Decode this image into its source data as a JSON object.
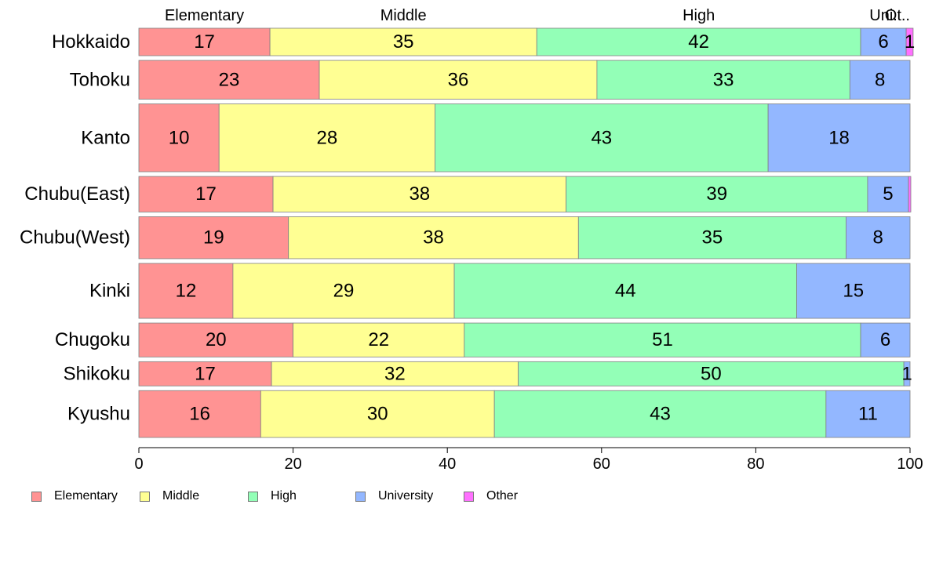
{
  "chart_data": {
    "type": "bar",
    "orientation": "horizontal",
    "stacked": true,
    "categories": [
      "Hokkaido",
      "Tohoku",
      "Kanto",
      "Chubu(East)",
      "Chubu(West)",
      "Kinki",
      "Chugoku",
      "Shikoku",
      "Kyushu"
    ],
    "series": [
      {
        "name": "Elementary",
        "color": "#ff9393",
        "values": [
          17,
          23.4,
          10.4,
          17.4,
          19.4,
          12.2,
          20,
          17.2,
          15.8
        ]
      },
      {
        "name": "Middle",
        "color": "#ffff93",
        "values": [
          34.6,
          36,
          28,
          38,
          37.6,
          28.7,
          22.2,
          32,
          30.3
        ]
      },
      {
        "name": "High",
        "color": "#93ffb7",
        "values": [
          42,
          32.8,
          43.2,
          39.1,
          34.7,
          44.4,
          51.4,
          50,
          43
        ]
      },
      {
        "name": "University",
        "color": "#93b7ff",
        "values": [
          5.9,
          7.8,
          18.4,
          5.3,
          8.3,
          14.7,
          6.4,
          0.8,
          10.9
        ]
      },
      {
        "name": "Other",
        "color": "#ff70ff",
        "values": [
          0.9,
          0,
          0,
          0.3,
          0,
          0,
          0,
          0,
          0
        ]
      }
    ],
    "labels": [
      [
        "17",
        "35",
        "42",
        "6",
        "1"
      ],
      [
        "23",
        "36",
        "33",
        "8",
        ""
      ],
      [
        "10",
        "28",
        "43",
        "18",
        ""
      ],
      [
        "17",
        "38",
        "39",
        "5",
        ""
      ],
      [
        "19",
        "38",
        "35",
        "8",
        ""
      ],
      [
        "12",
        "29",
        "44",
        "15",
        ""
      ],
      [
        "20",
        "22",
        "51",
        "6",
        ""
      ],
      [
        "17",
        "32",
        "50",
        "1",
        ""
      ],
      [
        "16",
        "30",
        "43",
        "11",
        ""
      ]
    ],
    "row_weights": [
      34,
      48,
      84,
      44,
      52,
      68,
      42,
      30,
      58
    ],
    "top_labels": [
      "Elementary",
      "Middle",
      "High",
      "Uni.",
      "Ot.."
    ],
    "xlim": [
      0,
      100
    ],
    "xticks": [
      0,
      20,
      40,
      60,
      80,
      100
    ],
    "legend_position": "bottom-left",
    "grid": false,
    "title": "",
    "xlabel": "",
    "ylabel": ""
  },
  "legend": {
    "items": [
      {
        "label": "Elementary",
        "color": "#ff9393"
      },
      {
        "label": "Middle",
        "color": "#ffff93"
      },
      {
        "label": "High",
        "color": "#93ffb7"
      },
      {
        "label": "University",
        "color": "#93b7ff"
      },
      {
        "label": "Other",
        "color": "#ff70ff"
      }
    ]
  }
}
